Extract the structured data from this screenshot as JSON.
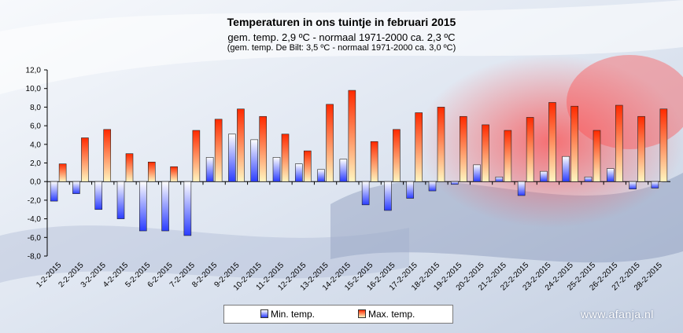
{
  "title": "Temperaturen  in ons  tuintje  in februari  2015",
  "subtitle1": "gem.  temp.  2,9 ºC  - normaal  1971-2000  ca. 2,3 ºC",
  "subtitle2": "(gem. temp. De Bilt: 3,5 ºC - normaal 1971-2000 ca. 3,0 ºC)",
  "watermark": "www.afanja.nl",
  "colors": {
    "max_top": "#ff2a00",
    "max_bottom": "#fff6c0",
    "min_top": "#ffffff",
    "min_bottom": "#2a3cff"
  },
  "legend": {
    "min_label": "Min.  temp.",
    "max_label": "Max.  temp."
  },
  "chart_data": {
    "type": "bar",
    "title": "Temperaturen  in ons  tuintje  in februari  2015",
    "ylim": [
      -8,
      12
    ],
    "yticks": [
      "12,0",
      "10,0",
      "8,0",
      "6,0",
      "4,0",
      "2,0",
      "0,0",
      "-2,0",
      "-4,0",
      "-6,0",
      "-8,0"
    ],
    "ytick_values": [
      12,
      10,
      8,
      6,
      4,
      2,
      0,
      -2,
      -4,
      -6,
      -8
    ],
    "categories": [
      "1-2-2015",
      "2-2-2015",
      "3-2-2015",
      "4-2-2015",
      "5-2-2015",
      "6-2-2015",
      "7-2-2015",
      "8-2-2015",
      "9-2-2015",
      "10-2-2015",
      "11-2-2015",
      "12-2-2015",
      "13-2-2015",
      "14-2-2015",
      "15-2-2015",
      "16-2-2015",
      "17-2-2015",
      "18-2-2015",
      "19-2-2015",
      "20-2-2015",
      "21-2-2015",
      "22-2-2015",
      "23-2-2015",
      "24-2-2015",
      "25-2-2015",
      "26-2-2015",
      "27-2-2015",
      "28-2-2015"
    ],
    "series": [
      {
        "name": "Min.  temp.",
        "values": [
          -2.1,
          -1.3,
          -3.0,
          -4.0,
          -5.3,
          -5.3,
          -5.8,
          2.6,
          5.1,
          4.5,
          2.6,
          1.9,
          1.3,
          2.4,
          -2.5,
          -3.1,
          -1.8,
          -1.0,
          -0.3,
          1.8,
          0.5,
          -1.5,
          1.1,
          2.7,
          0.5,
          1.4,
          -0.8,
          -0.7
        ]
      },
      {
        "name": "Max.  temp.",
        "values": [
          1.9,
          4.7,
          5.6,
          3.0,
          2.1,
          1.6,
          5.5,
          6.7,
          7.8,
          7.0,
          5.1,
          3.3,
          8.3,
          9.8,
          4.3,
          5.6,
          7.4,
          8.0,
          7.0,
          6.1,
          5.5,
          6.9,
          8.5,
          8.1,
          5.5,
          8.2,
          7.0,
          7.8
        ]
      }
    ],
    "legend_position": "bottom-center"
  }
}
